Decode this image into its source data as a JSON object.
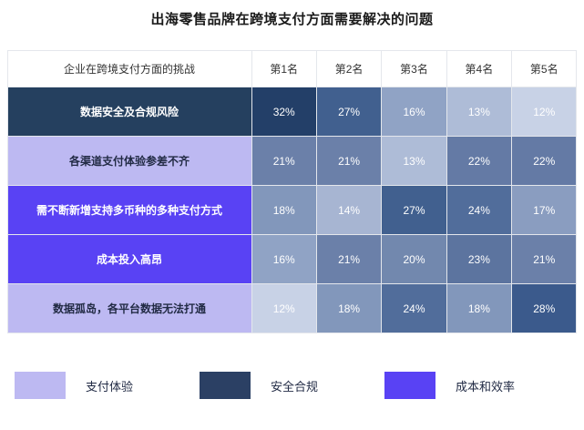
{
  "title": "出海零售品牌在跨境支付方面需要解决的问题",
  "chart_data": {
    "type": "heatmap",
    "title": "出海零售品牌在跨境支付方面需要解决的问题",
    "row_header": "企业在跨境支付方面的挑战",
    "columns": [
      "第1名",
      "第2名",
      "第3名",
      "第4名",
      "第5名"
    ],
    "rows": [
      {
        "label": "数据安全及合规风险",
        "category": "安全合规",
        "values": [
          32,
          27,
          16,
          13,
          12
        ]
      },
      {
        "label": "各渠道支付体验参差不齐",
        "category": "支付体验",
        "values": [
          21,
          21,
          13,
          22,
          22
        ]
      },
      {
        "label": "需不断新增支持多币种的多种支付方式",
        "category": "成本和效率",
        "values": [
          18,
          14,
          27,
          24,
          17
        ]
      },
      {
        "label": "成本投入高昂",
        "category": "成本和效率",
        "values": [
          16,
          21,
          20,
          23,
          21
        ]
      },
      {
        "label": "数据孤岛，各平台数据无法打通",
        "category": "支付体验",
        "values": [
          12,
          18,
          24,
          18,
          28
        ]
      }
    ],
    "value_unit": "%",
    "category_colors": {
      "安全合规": {
        "bg": "#25405f",
        "text": "#ffffff"
      },
      "支付体验": {
        "bg": "#bdb9f2",
        "text": "#222b45"
      },
      "成本和效率": {
        "bg": "#5942f4",
        "text": "#ffffff"
      }
    },
    "value_colors": {
      "12": "#c8d2e6",
      "13": "#aebcd7",
      "14": "#a7b5d2",
      "16": "#90a3c5",
      "17": "#8a9dc0",
      "18": "#8297bb",
      "20": "#7288ae",
      "21": "#6b80a9",
      "22": "#647aa5",
      "23": "#5c749f",
      "24": "#516d9b",
      "27": "#41608f",
      "28": "#3b5a8c",
      "32": "#233f68"
    },
    "legend": [
      {
        "label": "支付体验",
        "color": "#bdb9f2"
      },
      {
        "label": "安全合规",
        "color": "#2b4064"
      },
      {
        "label": "成本和效率",
        "color": "#5942f4"
      }
    ],
    "legend_position": "bottom"
  }
}
